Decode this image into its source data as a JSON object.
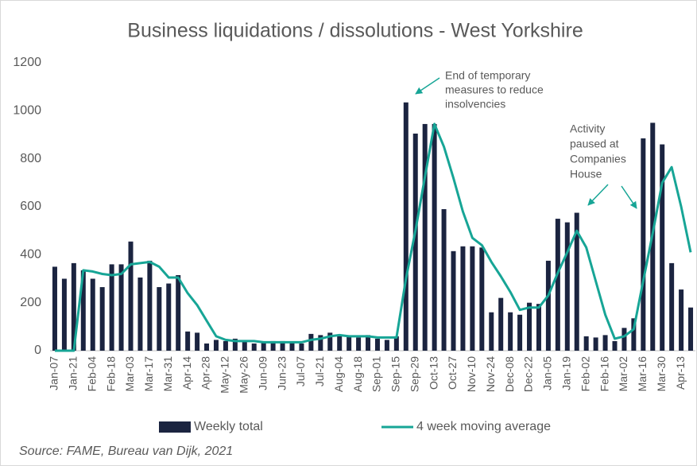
{
  "chart_data": {
    "type": "bar-line",
    "title": "Business liquidations / dissolutions - West Yorkshire",
    "source": "Source: FAME, Bureau van Dijk, 2021",
    "categories": [
      "Jan-07",
      null,
      "Jan-21",
      null,
      "Feb-04",
      null,
      "Feb-18",
      null,
      "Mar-03",
      null,
      "Mar-17",
      null,
      "Mar-31",
      null,
      "Apr-14",
      null,
      "Apr-28",
      null,
      "May-12",
      null,
      "May-26",
      null,
      "Jun-09",
      null,
      "Jun-23",
      null,
      "Jul-07",
      null,
      "Jul-21",
      null,
      "Aug-04",
      null,
      "Aug-18",
      null,
      "Sep-01",
      null,
      "Sep-15",
      null,
      "Sep-29",
      null,
      "Oct-13",
      null,
      "Oct-27",
      null,
      "Nov-10",
      null,
      "Nov-24",
      null,
      "Dec-08",
      null,
      "Dec-22",
      null,
      "Jan-05",
      null,
      "Jan-19",
      null,
      "Feb-02",
      null,
      "Feb-16",
      null,
      "Mar-02",
      null,
      "Mar-16",
      null,
      "Mar-30",
      null,
      "Apr-13",
      null
    ],
    "series": [
      {
        "name": "Weekly total",
        "kind": "bar",
        "color": "#1b2440",
        "values": [
          350,
          300,
          365,
          335,
          300,
          265,
          360,
          360,
          455,
          305,
          375,
          265,
          280,
          315,
          80,
          75,
          30,
          45,
          40,
          50,
          40,
          30,
          35,
          40,
          40,
          35,
          30,
          70,
          65,
          75,
          60,
          60,
          55,
          65,
          50,
          45,
          60,
          1035,
          905,
          945,
          945,
          590,
          415,
          435,
          435,
          430,
          160,
          220,
          160,
          150,
          200,
          195,
          375,
          550,
          535,
          575,
          60,
          55,
          65,
          40,
          95,
          135,
          885,
          950,
          860,
          365,
          255,
          180
        ]
      },
      {
        "name": "4 week moving average",
        "kind": "line",
        "color": "#17a596",
        "values": [
          0,
          0,
          0,
          335,
          330,
          320,
          315,
          320,
          360,
          365,
          370,
          350,
          305,
          305,
          240,
          190,
          125,
          60,
          45,
          40,
          40,
          40,
          35,
          35,
          35,
          35,
          35,
          45,
          50,
          60,
          65,
          60,
          60,
          60,
          55,
          55,
          55,
          300,
          500,
          725,
          945,
          850,
          720,
          580,
          470,
          440,
          370,
          310,
          245,
          170,
          180,
          180,
          230,
          325,
          410,
          500,
          430,
          290,
          150,
          50,
          60,
          90,
          290,
          490,
          700,
          765,
          600,
          410
        ]
      }
    ],
    "ylim": [
      0,
      1200
    ],
    "yticks": [
      0,
      200,
      400,
      600,
      800,
      1000,
      1200
    ],
    "grid": false,
    "legend": "bottom",
    "annotations": [
      {
        "lines": [
          "End of temporary",
          "measures to reduce",
          "insolvencies"
        ]
      },
      {
        "lines": [
          "Activity",
          "paused at",
          "Companies",
          "House"
        ]
      }
    ]
  }
}
